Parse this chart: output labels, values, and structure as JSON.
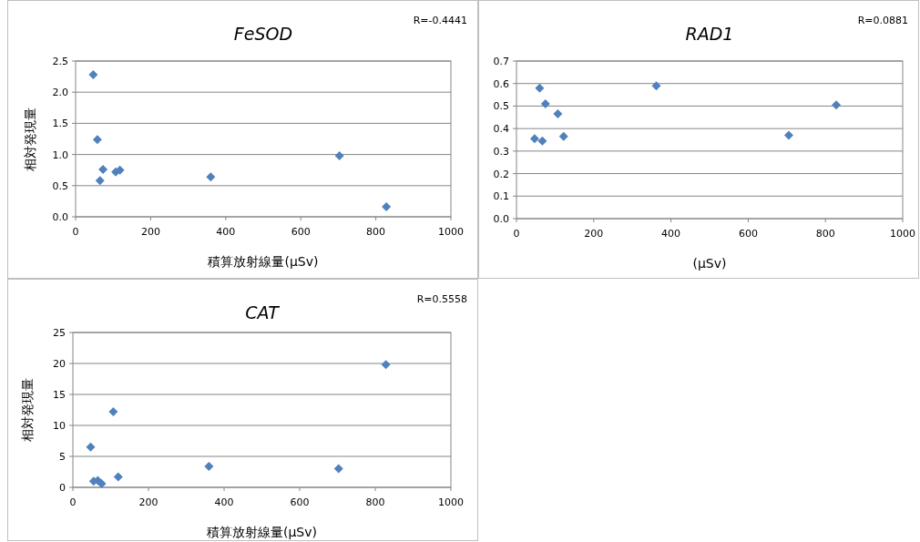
{
  "chart_data": [
    {
      "type": "scatter",
      "title": "FeSOD",
      "xlabel": "積算放射線量(μSv)",
      "ylabel": "相対発現量",
      "annotations": [
        "R=-0.4441"
      ],
      "x": [
        47,
        58,
        65,
        73,
        107,
        118,
        360,
        703,
        828
      ],
      "values": [
        2.28,
        1.24,
        0.58,
        0.76,
        0.72,
        0.75,
        0.64,
        0.98,
        0.16
      ],
      "color": "#4f81bd",
      "marker": "diamond",
      "grid": "y",
      "xlim": [
        0,
        1000
      ],
      "ylim": [
        0,
        2.5
      ],
      "xticks": [
        0,
        200,
        400,
        600,
        800,
        1000
      ],
      "yticks": [
        {
          "value": 0,
          "label": "0.0"
        },
        {
          "value": 0.5,
          "label": "0.5"
        },
        {
          "value": 1,
          "label": "1.0"
        },
        {
          "value": 1.5,
          "label": "1.5"
        },
        {
          "value": 2,
          "label": "2.0"
        },
        {
          "value": 2.5,
          "label": "2.5"
        }
      ]
    },
    {
      "type": "scatter",
      "title": "RAD1",
      "xlabel": "(μSv)",
      "annotations": [
        "R=0.0881"
      ],
      "x": [
        47,
        60,
        67,
        75,
        107,
        122,
        362,
        705,
        828
      ],
      "values": [
        0.355,
        0.58,
        0.345,
        0.51,
        0.465,
        0.365,
        0.59,
        0.37,
        0.505
      ],
      "color": "#4f81bd",
      "marker": "diamond",
      "grid": "y",
      "xlim": [
        0,
        1000
      ],
      "ylim": [
        0,
        0.7
      ],
      "xticks": [
        0,
        200,
        400,
        600,
        800,
        1000
      ],
      "yticks": [
        {
          "value": 0,
          "label": "0.0"
        },
        {
          "value": 0.1,
          "label": "0.1"
        },
        {
          "value": 0.2,
          "label": "0.2"
        },
        {
          "value": 0.3,
          "label": "0.3"
        },
        {
          "value": 0.4,
          "label": "0.4"
        },
        {
          "value": 0.5,
          "label": "0.5"
        },
        {
          "value": 0.6,
          "label": "0.6"
        },
        {
          "value": 0.7,
          "label": "0.7"
        }
      ]
    },
    {
      "type": "scatter",
      "title": "CAT",
      "xlabel": "積算放射線量(μSv)",
      "ylabel": "相対発現量",
      "annotations": [
        "R=0.5558"
      ],
      "x": [
        47,
        55,
        66,
        76,
        107,
        120,
        360,
        703,
        828
      ],
      "values": [
        6.5,
        1.0,
        1.1,
        0.6,
        12.2,
        1.7,
        3.4,
        3.0,
        19.8
      ],
      "color": "#4f81bd",
      "marker": "diamond",
      "grid": "y",
      "xlim": [
        0,
        1000
      ],
      "ylim": [
        0,
        25
      ],
      "xticks": [
        0,
        200,
        400,
        600,
        800,
        1000
      ],
      "yticks": [
        0,
        5,
        10,
        15,
        20,
        25
      ]
    }
  ]
}
